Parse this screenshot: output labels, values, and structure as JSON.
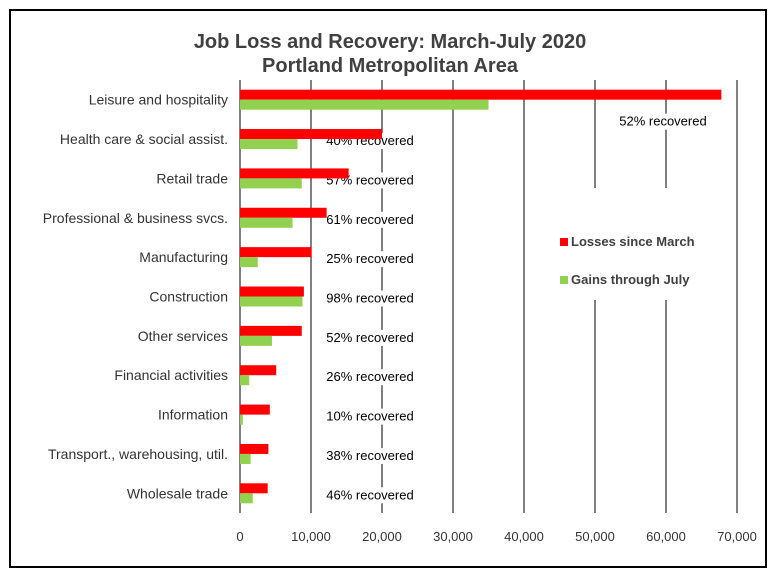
{
  "chart_data": {
    "type": "bar",
    "orientation": "horizontal",
    "title": "Job Loss and Recovery: March-July 2020",
    "subtitle": "Portland Metropolitan Area",
    "categories": [
      "Leisure and hospitality",
      "Health care & social assist.",
      "Retail trade",
      "Professional & business svcs.",
      "Manufacturing",
      "Construction",
      "Other services",
      "Financial activities",
      "Information",
      "Transport., warehousing, util.",
      "Wholesale trade"
    ],
    "series": [
      {
        "name": "Losses since March",
        "color": "#ff0000",
        "values": [
          67800,
          20000,
          15300,
          12200,
          10100,
          9000,
          8700,
          5100,
          4200,
          4000,
          3900
        ]
      },
      {
        "name": "Gains through July",
        "color": "#92d050",
        "values": [
          35000,
          8100,
          8700,
          7400,
          2500,
          8800,
          4500,
          1300,
          400,
          1500,
          1800
        ]
      }
    ],
    "annotations": [
      "52% recovered",
      "40% recovered",
      "57% recovered",
      "61% recovered",
      "25% recovered",
      "98% recovered",
      "52% recovered",
      "26% recovered",
      "10% recovered",
      "38% recovered",
      "46% recovered"
    ],
    "xlim": [
      0,
      70000
    ],
    "xticks": [
      0,
      10000,
      20000,
      30000,
      40000,
      50000,
      60000,
      70000
    ],
    "xtick_labels": [
      "0",
      "10,000",
      "20,000",
      "30,000",
      "40,000",
      "50,000",
      "60,000",
      "70,000"
    ],
    "grid": "vertical",
    "legend_position": "right"
  }
}
